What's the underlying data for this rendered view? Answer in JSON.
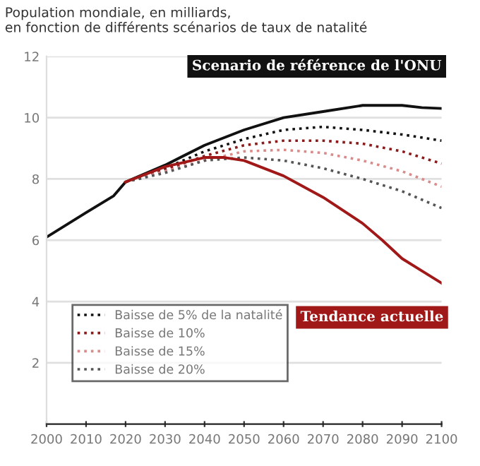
{
  "chart_data": {
    "type": "line",
    "title": "Population mondiale, en milliards,\nen fonction de différents scénarios de taux de natalité",
    "series": [
      {
        "name": "Scenario de référence de l'ONU",
        "color": "#111111",
        "line_style": "solid",
        "x": [
          2000,
          2010,
          2017,
          2020,
          2030,
          2040,
          2050,
          2060,
          2070,
          2080,
          2090,
          2095,
          2100
        ],
        "values": [
          6.1,
          6.9,
          7.45,
          7.9,
          8.45,
          9.1,
          9.6,
          10.0,
          10.2,
          10.4,
          10.4,
          10.33,
          10.3
        ]
      },
      {
        "name": "Baisse de 5% de la natalité",
        "color": "#111111",
        "line_style": "dotted",
        "x": [
          2020,
          2030,
          2040,
          2050,
          2060,
          2070,
          2080,
          2090,
          2100
        ],
        "values": [
          7.9,
          8.35,
          8.9,
          9.3,
          9.6,
          9.7,
          9.6,
          9.45,
          9.25
        ]
      },
      {
        "name": "Baisse de 10%",
        "color": "#8b1a1a",
        "line_style": "dotted",
        "x": [
          2020,
          2030,
          2040,
          2050,
          2060,
          2070,
          2080,
          2090,
          2100
        ],
        "values": [
          7.9,
          8.3,
          8.75,
          9.1,
          9.25,
          9.25,
          9.15,
          8.9,
          8.5
        ]
      },
      {
        "name": "Baisse de 15%",
        "color": "#d98a8a",
        "line_style": "dotted",
        "x": [
          2020,
          2030,
          2040,
          2050,
          2060,
          2070,
          2080,
          2090,
          2100
        ],
        "values": [
          7.9,
          8.25,
          8.6,
          8.9,
          8.95,
          8.85,
          8.6,
          8.25,
          7.75
        ]
      },
      {
        "name": "Baisse de 20%",
        "color": "#555555",
        "line_style": "dotted",
        "x": [
          2020,
          2030,
          2040,
          2050,
          2060,
          2070,
          2080,
          2090,
          2100
        ],
        "values": [
          7.9,
          8.2,
          8.6,
          8.7,
          8.6,
          8.35,
          8.0,
          7.6,
          7.05
        ]
      },
      {
        "name": "Tendance actuelle",
        "color": "#a01818",
        "line_style": "solid",
        "x": [
          2020,
          2030,
          2040,
          2045,
          2050,
          2060,
          2070,
          2080,
          2085,
          2090,
          2095,
          2100
        ],
        "values": [
          7.9,
          8.4,
          8.7,
          8.7,
          8.6,
          8.1,
          7.4,
          6.55,
          6.0,
          5.4,
          5.0,
          4.6
        ]
      }
    ],
    "xlim": [
      2000,
      2100
    ],
    "xticks": [
      2000,
      2010,
      2020,
      2030,
      2040,
      2050,
      2060,
      2070,
      2080,
      2090,
      2100
    ],
    "ylim": [
      0,
      12
    ],
    "yticks": [
      2,
      4,
      6,
      8,
      10,
      12
    ],
    "grid": "y",
    "legend": "bottom left"
  }
}
